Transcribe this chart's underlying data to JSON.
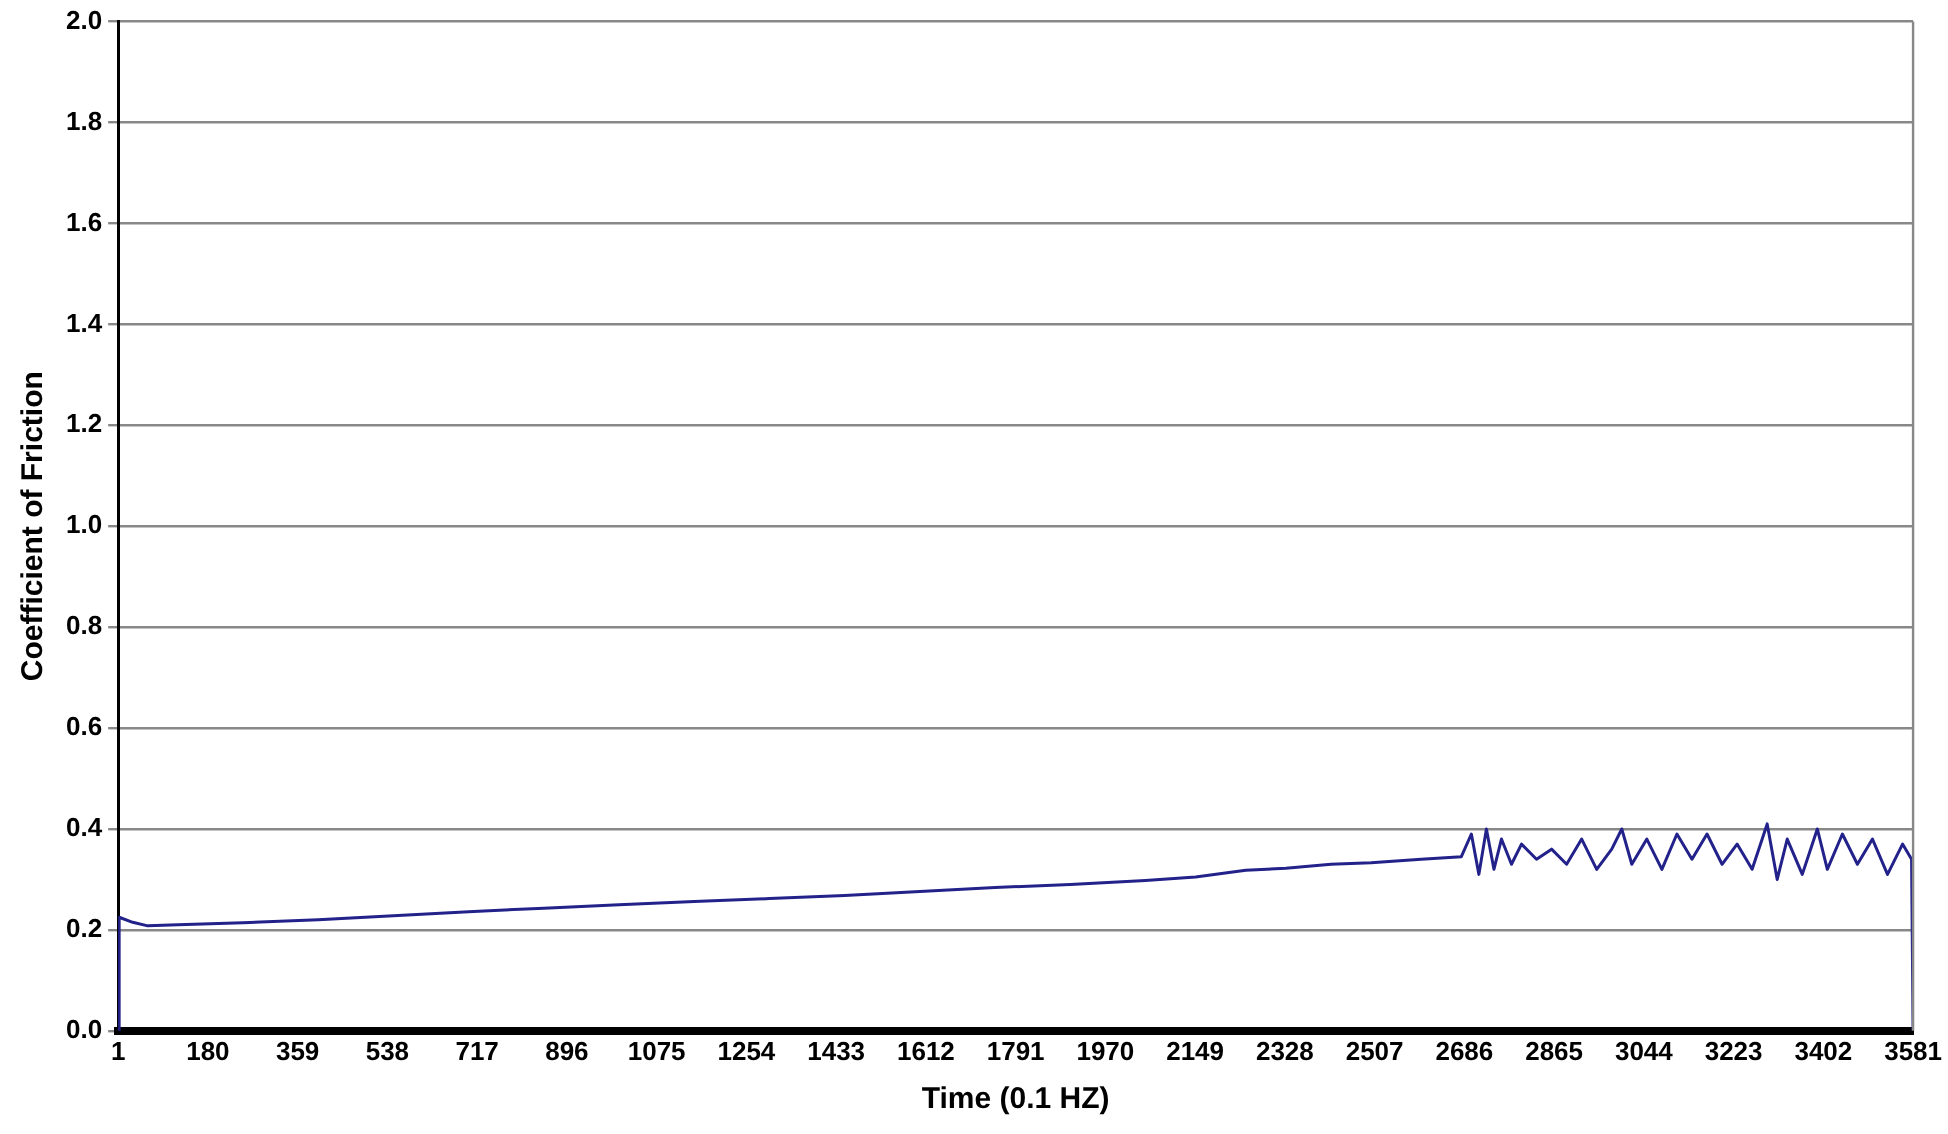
{
  "chart_data": {
    "type": "line",
    "xlabel": "Time (0.1 HZ)",
    "ylabel": "Coefficient of Friction",
    "xlim": [
      1,
      3581
    ],
    "xticks": [
      1,
      180,
      359,
      538,
      717,
      896,
      1075,
      1254,
      1433,
      1612,
      1791,
      1970,
      2149,
      2328,
      2507,
      2686,
      2865,
      3044,
      3223,
      3402,
      3581
    ],
    "ylim": [
      0,
      2
    ],
    "yticks": [
      {
        "value": 0,
        "label": "0.0"
      },
      {
        "value": 0.2,
        "label": "0.2"
      },
      {
        "value": 0.4,
        "label": "0.4"
      },
      {
        "value": 0.6,
        "label": "0.6"
      },
      {
        "value": 0.8,
        "label": "0.8"
      },
      {
        "value": 1,
        "label": "1.0"
      },
      {
        "value": 1.2,
        "label": "1.2"
      },
      {
        "value": 1.4,
        "label": "1.4"
      },
      {
        "value": 1.6,
        "label": "1.6"
      },
      {
        "value": 1.8,
        "label": "1.8"
      },
      {
        "value": 2,
        "label": "2.0"
      }
    ],
    "grid": "y",
    "legend": false,
    "marker": "none",
    "line_style": "solid",
    "series": [
      {
        "color": "#22228a",
        "x": [
          1,
          3,
          30,
          60,
          120,
          250,
          400,
          550,
          700,
          850,
          1000,
          1150,
          1300,
          1450,
          1600,
          1750,
          1900,
          2050,
          2150,
          2250,
          2330,
          2420,
          2500,
          2600,
          2680,
          2700,
          2715,
          2730,
          2745,
          2760,
          2780,
          2800,
          2830,
          2860,
          2890,
          2920,
          2950,
          2980,
          3000,
          3020,
          3050,
          3080,
          3110,
          3140,
          3170,
          3200,
          3230,
          3260,
          3290,
          3310,
          3330,
          3360,
          3390,
          3410,
          3440,
          3470,
          3500,
          3530,
          3560,
          3578,
          3581
        ],
        "values": [
          0,
          0.225,
          0.215,
          0.208,
          0.21,
          0.214,
          0.22,
          0.228,
          0.236,
          0.243,
          0.25,
          0.256,
          0.262,
          0.268,
          0.276,
          0.284,
          0.29,
          0.298,
          0.305,
          0.318,
          0.322,
          0.33,
          0.333,
          0.34,
          0.345,
          0.39,
          0.31,
          0.4,
          0.32,
          0.38,
          0.33,
          0.37,
          0.34,
          0.36,
          0.33,
          0.38,
          0.32,
          0.36,
          0.4,
          0.33,
          0.38,
          0.32,
          0.39,
          0.34,
          0.39,
          0.33,
          0.37,
          0.32,
          0.41,
          0.3,
          0.38,
          0.31,
          0.4,
          0.32,
          0.39,
          0.33,
          0.38,
          0.31,
          0.37,
          0.34,
          0
        ]
      }
    ]
  }
}
